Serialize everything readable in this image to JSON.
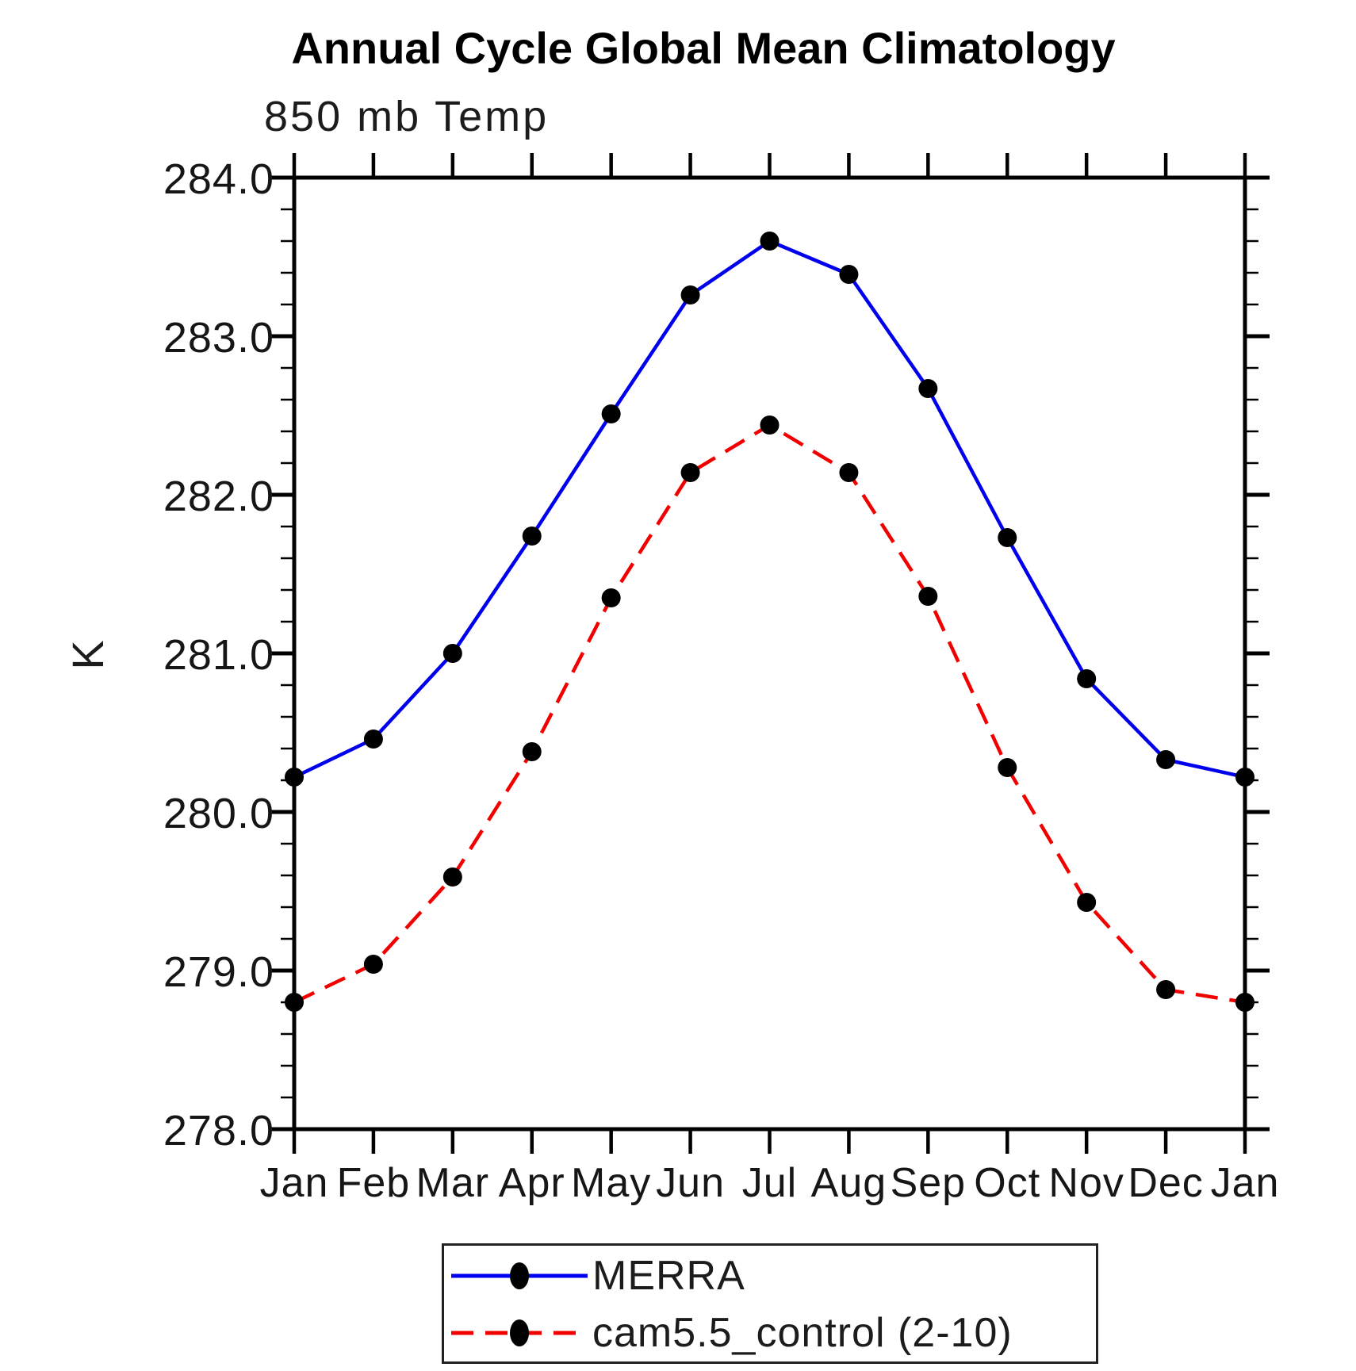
{
  "title": "Annual Cycle Global Mean Climatology",
  "chart_data": {
    "type": "line",
    "title": "Annual Cycle Global Mean Climatology",
    "plot_heading": "850 mb Temp",
    "ylabel": "K",
    "xlabel": "",
    "categories": [
      "Jan",
      "Feb",
      "Mar",
      "Apr",
      "May",
      "Jun",
      "Jul",
      "Aug",
      "Sep",
      "Oct",
      "Nov",
      "Dec",
      "Jan"
    ],
    "ylim": [
      278.0,
      284.0
    ],
    "ytick_interval": 1.0,
    "minor_tick_interval": 0.2,
    "ytick_labels": [
      "278.0",
      "279.0",
      "280.0",
      "281.0",
      "282.0",
      "283.0",
      "284.0"
    ],
    "grid": false,
    "legend_position": "bottom-center",
    "axis_color": "#000000",
    "marker_color": "#000000",
    "series": [
      {
        "name": "MERRA",
        "color": "#0000ee",
        "line_style": "solid",
        "marker": "filled-circle",
        "values": [
          280.22,
          280.46,
          281.0,
          281.74,
          282.51,
          283.26,
          283.6,
          283.39,
          282.67,
          281.73,
          280.84,
          280.33,
          280.22
        ]
      },
      {
        "name": "cam5.5_control (2-10)",
        "color": "#f20000",
        "line_style": "dashed",
        "marker": "filled-circle",
        "values": [
          278.8,
          279.04,
          279.59,
          280.38,
          281.35,
          282.14,
          282.44,
          282.14,
          281.36,
          280.28,
          279.43,
          278.88,
          278.8
        ]
      }
    ]
  }
}
